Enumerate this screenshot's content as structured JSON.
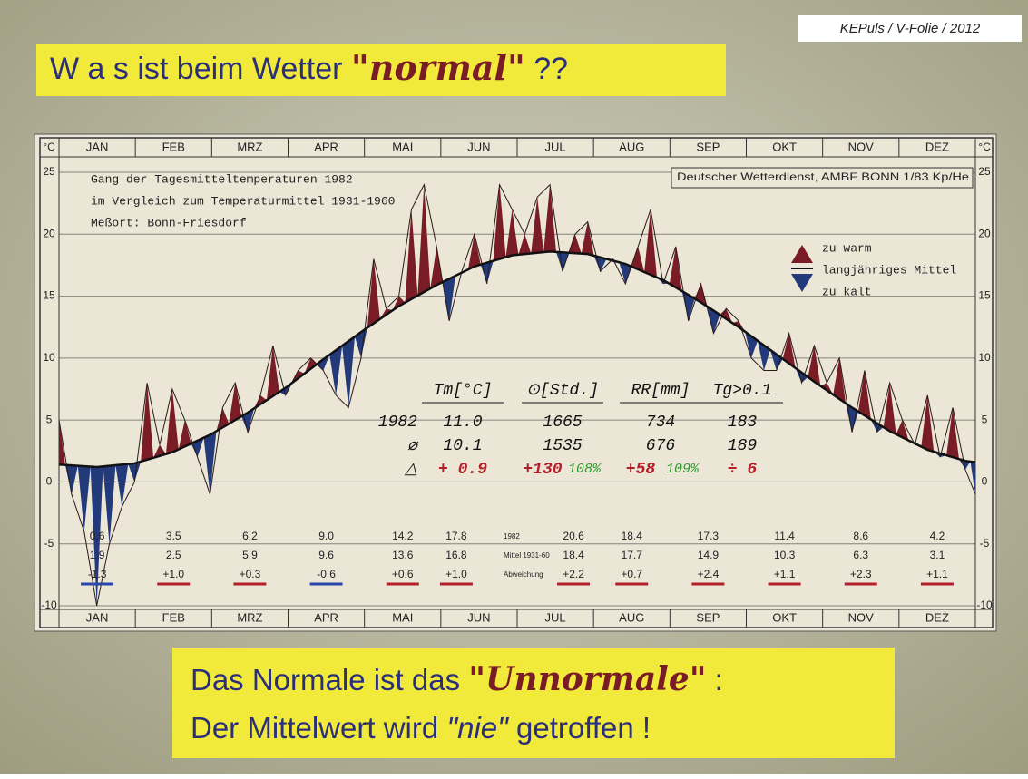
{
  "slide": {
    "credit": "KEPuls / V-Folie / 2012",
    "title": [
      "W a s  ist beim Wetter ",
      "\"normal\"",
      " ??"
    ],
    "footer_line1": [
      "Das Normale ist das ",
      "\"Unnormale\"",
      " :"
    ],
    "footer_line2": [
      "Der Mittelwert wird ",
      "\"nie\"",
      " getroffen  !"
    ]
  },
  "chart_data": {
    "type": "line",
    "unit": "°C",
    "categories": [
      "JAN",
      "FEB",
      "MRZ",
      "APR",
      "MAI",
      "JUN",
      "JUL",
      "AUG",
      "SEP",
      "OKT",
      "NOV",
      "DEZ"
    ],
    "notes": [
      "Gang der Tagesmitteltemperaturen 1982",
      "im Vergleich zum Temperaturmittel 1931-1960",
      "Meßort: Bonn-Friesdorf"
    ],
    "source": "Deutscher Wetterdienst, AMBF BONN 1/83  Kp/He",
    "legend": [
      "zu warm",
      "langjähriges Mittel",
      "zu kalt"
    ],
    "warm_color": "#7a1c26",
    "cold_color": "#22397a",
    "xlim": [
      1,
      365
    ],
    "ylim": [
      -10,
      25
    ],
    "yticks": [
      -10,
      -5,
      0,
      5,
      10,
      15,
      20,
      25
    ],
    "grid": true,
    "x": [
      1,
      6,
      11,
      16,
      21,
      26,
      31,
      36,
      41,
      46,
      51,
      56,
      61,
      66,
      71,
      76,
      81,
      86,
      91,
      96,
      101,
      106,
      111,
      116,
      121,
      126,
      131,
      136,
      141,
      146,
      151,
      156,
      161,
      166,
      171,
      176,
      181,
      186,
      191,
      196,
      201,
      206,
      211,
      216,
      221,
      226,
      231,
      236,
      241,
      246,
      251,
      256,
      261,
      266,
      271,
      276,
      281,
      286,
      291,
      296,
      301,
      306,
      311,
      316,
      321,
      326,
      331,
      336,
      341,
      346,
      351,
      356,
      361,
      365
    ],
    "values": [
      5,
      -1,
      -4,
      -10,
      -5,
      -2,
      0,
      8,
      3,
      7.5,
      5,
      2,
      -1,
      6,
      8,
      4,
      7,
      11,
      7,
      9,
      10,
      9,
      7,
      6,
      10,
      18,
      14,
      15,
      22,
      24,
      19,
      13,
      17,
      20,
      16,
      24,
      22,
      20,
      23,
      24,
      17,
      20,
      21,
      17,
      18,
      16,
      19,
      22,
      16,
      19,
      13,
      16,
      12,
      14,
      13,
      10,
      9,
      9,
      12,
      8,
      11,
      8,
      10,
      4,
      9,
      4,
      8,
      5,
      3,
      7,
      2,
      6,
      1,
      -1
    ],
    "mean_x": [
      1,
      16,
      31,
      46,
      61,
      76,
      91,
      106,
      121,
      136,
      151,
      166,
      181,
      196,
      211,
      226,
      241,
      256,
      271,
      286,
      301,
      316,
      331,
      346,
      361,
      365
    ],
    "mean_values": [
      1.4,
      1.2,
      1.5,
      2.4,
      3.8,
      5.6,
      7.6,
      9.9,
      12.1,
      14.2,
      15.9,
      17.4,
      18.3,
      18.6,
      18.4,
      17.6,
      16.3,
      14.5,
      12.5,
      10.3,
      8.1,
      6.0,
      4.1,
      2.6,
      1.7,
      1.6
    ],
    "summary": {
      "headers": [
        "Tm[°C]",
        "⊙[Std.]",
        "RR[mm]",
        "Tg>0.1"
      ],
      "rows": [
        {
          "label": "1982",
          "cells": [
            "11.0",
            "1665",
            "734",
            "183"
          ]
        },
        {
          "label": "⌀",
          "cells": [
            "10.1",
            "1535",
            "676",
            "189"
          ]
        },
        {
          "label": "△",
          "cells": [
            "+ 0.9",
            "+130",
            "+58",
            "÷ 6"
          ],
          "percent": [
            "108%",
            "109%"
          ]
        }
      ]
    },
    "monthly": {
      "labels": [
        "1982",
        "Mittel 1931-60",
        "Abweichung"
      ],
      "rows": [
        [
          "0.6",
          "3.5",
          "6.2",
          "9.0",
          "14.2",
          "17.8",
          "20.6",
          "18.4",
          "17.3",
          "11.4",
          "8.6",
          "4.2"
        ],
        [
          "1.9",
          "2.5",
          "5.9",
          "9.6",
          "13.6",
          "16.8",
          "18.4",
          "17.7",
          "14.9",
          "10.3",
          "6.3",
          "3.1"
        ],
        [
          "-1.3",
          "+1.0",
          "+0.3",
          "-0.6",
          "+0.6",
          "+1.0",
          "+2.2",
          "+0.7",
          "+2.4",
          "+1.1",
          "+2.3",
          "+1.1"
        ]
      ]
    }
  }
}
